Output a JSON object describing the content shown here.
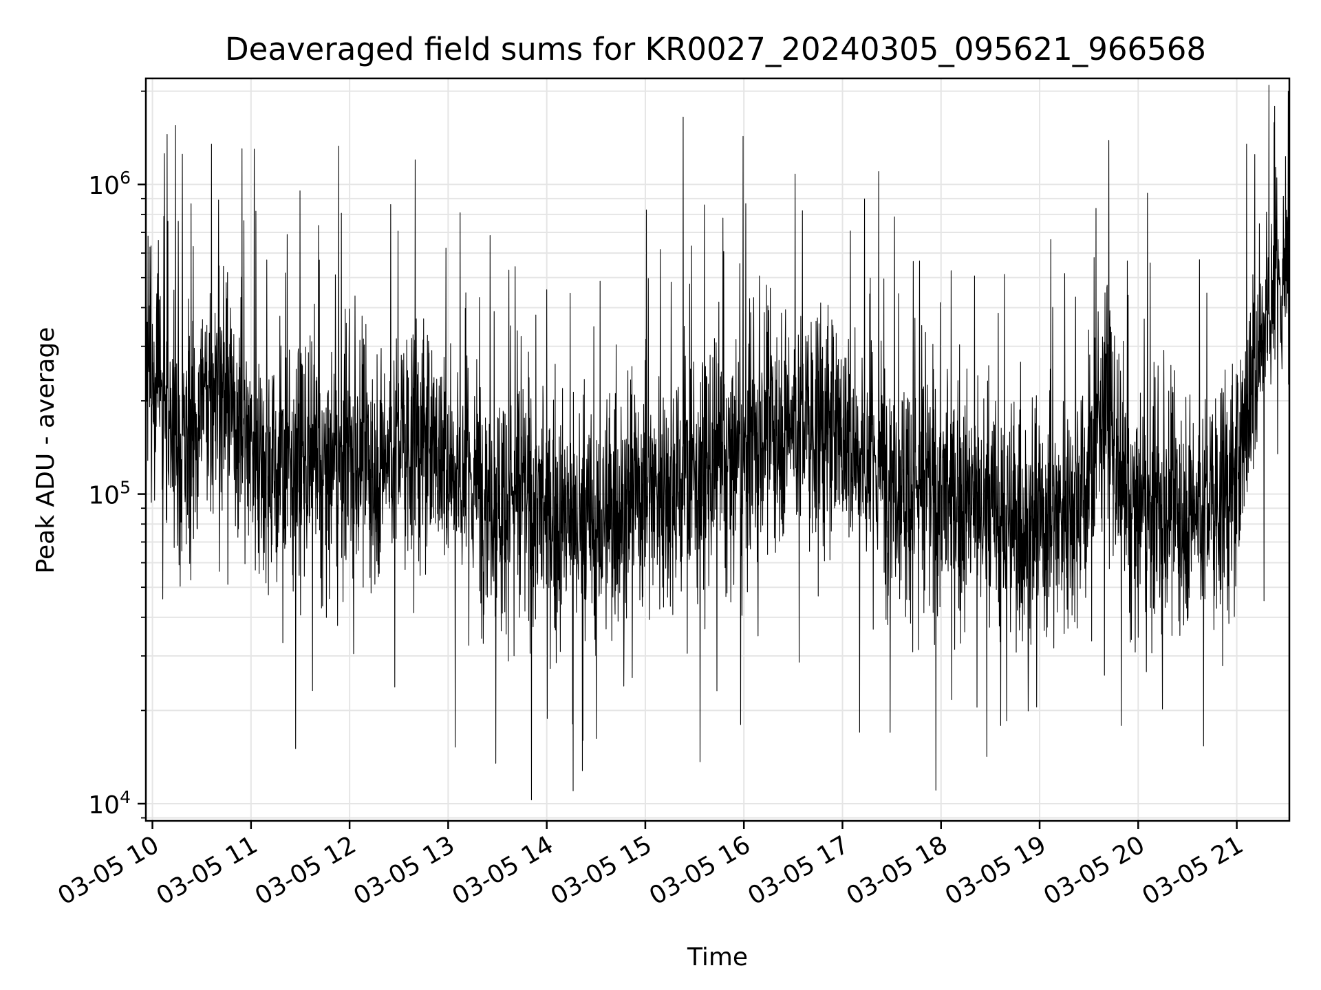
{
  "chart_data": {
    "type": "line",
    "title": "Deaveraged field sums for KR0027_20240305_095621_966568",
    "xlabel": "Time",
    "ylabel": "Peak ADU - average",
    "y_scale": "log",
    "ylim": [
      8800,
      2200000
    ],
    "xlim": [
      "2024-03-05 09:56",
      "2024-03-05 21:32"
    ],
    "grid": true,
    "grid_color": "#e5e5e5",
    "line_color": "#000000",
    "x_ticks": [
      {
        "time": "2024-03-05 10:00",
        "label": "03-05 10"
      },
      {
        "time": "2024-03-05 11:00",
        "label": "03-05 11"
      },
      {
        "time": "2024-03-05 12:00",
        "label": "03-05 12"
      },
      {
        "time": "2024-03-05 13:00",
        "label": "03-05 13"
      },
      {
        "time": "2024-03-05 14:00",
        "label": "03-05 14"
      },
      {
        "time": "2024-03-05 15:00",
        "label": "03-05 15"
      },
      {
        "time": "2024-03-05 16:00",
        "label": "03-05 16"
      },
      {
        "time": "2024-03-05 17:00",
        "label": "03-05 17"
      },
      {
        "time": "2024-03-05 18:00",
        "label": "03-05 18"
      },
      {
        "time": "2024-03-05 19:00",
        "label": "03-05 19"
      },
      {
        "time": "2024-03-05 20:00",
        "label": "03-05 20"
      },
      {
        "time": "2024-03-05 21:00",
        "label": "03-05 21"
      }
    ],
    "y_ticks": [
      {
        "value": 10000,
        "base": "10",
        "exp": "4"
      },
      {
        "value": 100000,
        "base": "10",
        "exp": "5"
      },
      {
        "value": 1000000,
        "base": "10",
        "exp": "6"
      }
    ],
    "series": [
      {
        "x": [
          "2024-03-05 09:56",
          "2024-03-05 10:00",
          "2024-03-05 10:10",
          "2024-03-05 10:20",
          "2024-03-05 10:30",
          "2024-03-05 10:40",
          "2024-03-05 10:50",
          "2024-03-05 11:00",
          "2024-03-05 11:15",
          "2024-03-05 11:30",
          "2024-03-05 11:45",
          "2024-03-05 12:00",
          "2024-03-05 12:15",
          "2024-03-05 12:30",
          "2024-03-05 12:45",
          "2024-03-05 13:00",
          "2024-03-05 13:15",
          "2024-03-05 13:30",
          "2024-03-05 13:45",
          "2024-03-05 14:00",
          "2024-03-05 14:15",
          "2024-03-05 14:30",
          "2024-03-05 14:45",
          "2024-03-05 15:00",
          "2024-03-05 15:15",
          "2024-03-05 15:30",
          "2024-03-05 15:45",
          "2024-03-05 16:00",
          "2024-03-05 16:15",
          "2024-03-05 16:30",
          "2024-03-05 16:45",
          "2024-03-05 17:00",
          "2024-03-05 17:15",
          "2024-03-05 17:30",
          "2024-03-05 17:45",
          "2024-03-05 18:00",
          "2024-03-05 18:15",
          "2024-03-05 18:30",
          "2024-03-05 18:45",
          "2024-03-05 19:00",
          "2024-03-05 19:15",
          "2024-03-05 19:30",
          "2024-03-05 19:40",
          "2024-03-05 19:50",
          "2024-03-05 20:00",
          "2024-03-05 20:15",
          "2024-03-05 20:30",
          "2024-03-05 20:45",
          "2024-03-05 21:00",
          "2024-03-05 21:10",
          "2024-03-05 21:20",
          "2024-03-05 21:32"
        ],
        "y": [
          330000,
          230000,
          150000,
          140000,
          200000,
          230000,
          180000,
          150000,
          120000,
          130000,
          110000,
          130000,
          120000,
          150000,
          150000,
          130000,
          110000,
          100000,
          100000,
          85000,
          80000,
          75000,
          95000,
          105000,
          110000,
          115000,
          120000,
          130000,
          160000,
          175000,
          170000,
          160000,
          130000,
          120000,
          105000,
          100000,
          95000,
          85000,
          80000,
          80000,
          90000,
          110000,
          230000,
          90000,
          85000,
          85000,
          90000,
          95000,
          110000,
          250000,
          450000,
          500000
        ],
        "y_spikes_high": [
          {
            "x": "2024-03-05 10:09",
            "y": 1450000
          },
          {
            "x": "2024-03-05 10:36",
            "y": 1350000
          },
          {
            "x": "2024-03-05 11:02",
            "y": 1300000
          },
          {
            "x": "2024-03-05 12:40",
            "y": 1200000
          },
          {
            "x": "2024-03-05 15:23",
            "y": 1650000
          },
          {
            "x": "2024-03-05 17:22",
            "y": 1100000
          },
          {
            "x": "2024-03-05 21:06",
            "y": 1350000
          }
        ],
        "y_spikes_low": [
          {
            "x": "2024-03-05 13:29",
            "y": 13500
          },
          {
            "x": "2024-03-05 14:16",
            "y": 11000
          },
          {
            "x": "2024-03-05 14:22",
            "y": 16000
          },
          {
            "x": "2024-03-05 15:58",
            "y": 18000
          },
          {
            "x": "2024-03-05 17:29",
            "y": 17000
          },
          {
            "x": "2024-03-05 18:40",
            "y": 18500
          }
        ]
      }
    ]
  }
}
